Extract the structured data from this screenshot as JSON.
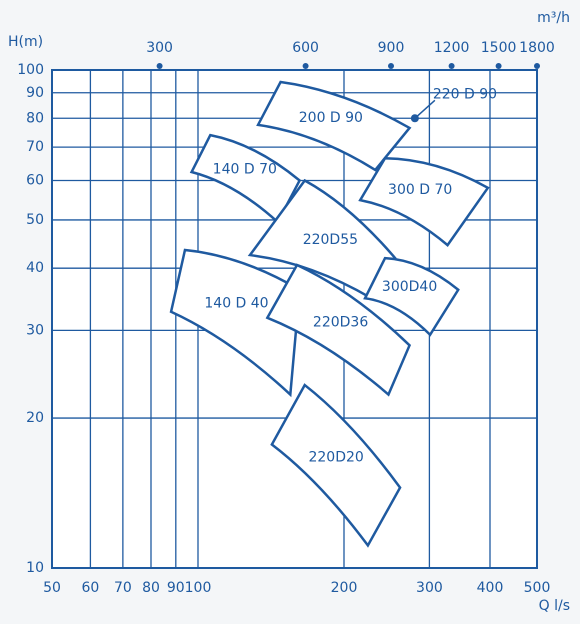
{
  "chart_data": {
    "type": "region",
    "x_label": "Q l/s",
    "y_label": "H(m)",
    "x2_label": "m³/h",
    "log_x": true,
    "log_y": true,
    "grid": true,
    "color": "#1f5aa0",
    "xlim": [
      50,
      500
    ],
    "xticks": [
      50,
      60,
      70,
      80,
      90,
      100,
      200,
      300,
      400,
      500
    ],
    "ylim": [
      10,
      100
    ],
    "yticks": [
      10,
      20,
      30,
      40,
      50,
      60,
      70,
      80,
      90,
      100
    ],
    "x2lim": [
      180,
      1800
    ],
    "x2ticks": [
      300,
      600,
      900,
      1200,
      1500,
      1800
    ],
    "series": [
      {
        "name": "200 D 90",
        "q": [
          148,
          273,
          232,
          133
        ],
        "h": [
          94.6,
          76.5,
          63,
          77.6
        ]
      },
      {
        "name": "140 D 70",
        "q": [
          106,
          162,
          146,
          97
        ],
        "h": [
          74,
          60,
          49.5,
          62.4
        ]
      },
      {
        "name": "300 D 70",
        "q": [
          243,
          396,
          327,
          216
        ],
        "h": [
          66.5,
          58,
          44.5,
          54.8
        ]
      },
      {
        "name": "220D55",
        "q": [
          166,
          255,
          228,
          128
        ],
        "h": [
          60,
          41.9,
          34.8,
          42.5
        ]
      },
      {
        "name": "300D40",
        "q": [
          243,
          344,
          301,
          221
        ],
        "h": [
          41.9,
          36.2,
          29.4,
          34.8
        ]
      },
      {
        "name": "140 D 40",
        "q": [
          94,
          162,
          155,
          88
        ],
        "h": [
          43.5,
          36.2,
          22.3,
          32.7
        ]
      },
      {
        "name": "220D36",
        "q": [
          160,
          273,
          247,
          139
        ],
        "h": [
          40.6,
          28,
          22.3,
          31.8
        ]
      },
      {
        "name": "220D20",
        "q": [
          166,
          261,
          224,
          142
        ],
        "h": [
          23.3,
          14.5,
          11.1,
          17.7
        ]
      }
    ],
    "points": [
      {
        "name": "220 D 90",
        "q": 280,
        "h": 80
      }
    ]
  }
}
